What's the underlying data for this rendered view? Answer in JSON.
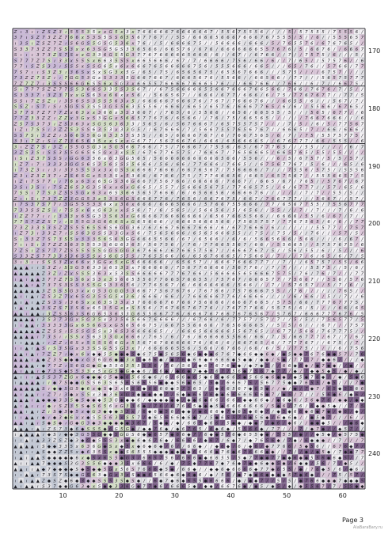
{
  "page": {
    "label": "Page 3"
  },
  "watermark": {
    "text": "AlaBaraBary.ru"
  },
  "grid": {
    "columns": 63,
    "rows": 80,
    "row_labels": [
      "170",
      "180",
      "190",
      "200",
      "210",
      "220",
      "230",
      "240"
    ],
    "col_labels": [
      "10",
      "20",
      "30",
      "40",
      "50",
      "60"
    ]
  },
  "colors": {
    "paper": "#ffffff",
    "grid_minor": "#b9b9c2",
    "grid_major": "#333338",
    "symbol_ink": "#1b1b22",
    "cell_pink": "#dcc7d9",
    "cell_lilac": "#cbb9d8",
    "cell_grey_blue": "#c4cad6",
    "cell_pale_green": "#d6e0c8",
    "cell_white": "#f3f1f4",
    "cell_light_grey": "#e2e2e6",
    "cell_dark_purple": "#7a5d86"
  },
  "symbols": {
    "set": [
      "S",
      "Z",
      "6",
      "7",
      "3",
      "x",
      "5",
      "/",
      "G",
      "◆",
      "▲",
      "ı",
      "0"
    ]
  }
}
